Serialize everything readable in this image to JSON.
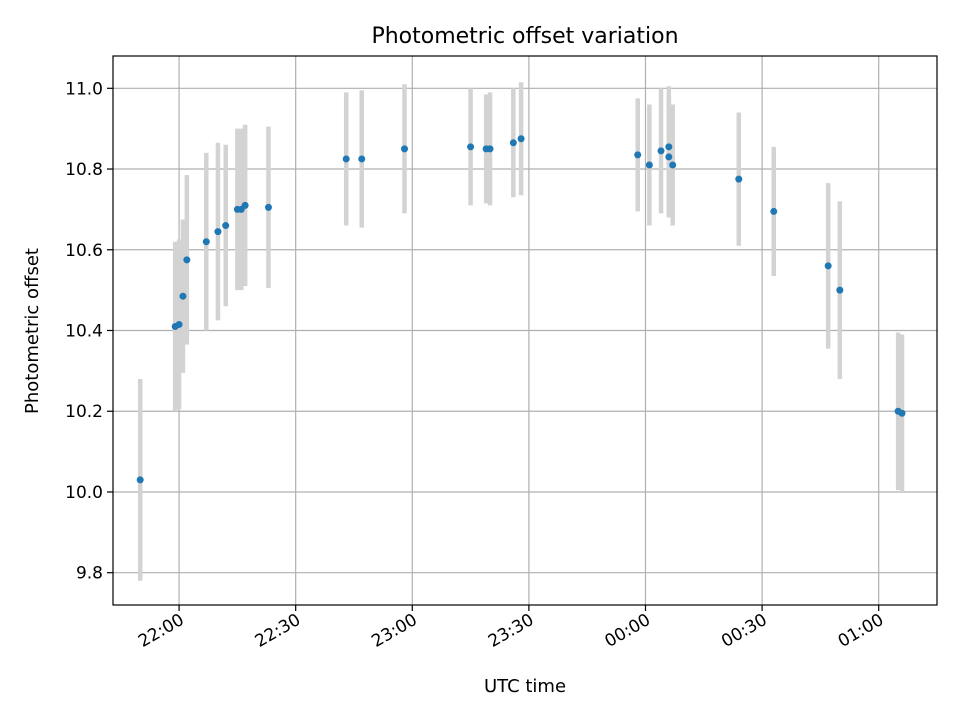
{
  "chart_data": {
    "type": "scatter",
    "title": "Photometric offset variation",
    "xlabel": "UTC time",
    "ylabel": "Photometric offset",
    "x_unit": "UTC time, clock labels; points span 21:50 to 01:07 across midnight",
    "x_ticks": [
      "22:00",
      "22:30",
      "23:00",
      "23:30",
      "00:00",
      "00:30",
      "01:00"
    ],
    "y_ticks": [
      "9.8",
      "10.0",
      "10.2",
      "10.4",
      "10.6",
      "10.8",
      "11.0"
    ],
    "xlim": [
      "21:43",
      "01:15"
    ],
    "ylim": [
      9.72,
      11.08
    ],
    "grid": true,
    "legend": "none",
    "colors": {
      "points": "#1f77b4",
      "errorbars": "#d3d3d3",
      "grid": "#b0b0b0"
    },
    "series": [
      {
        "points": [
          {
            "x": "21:50",
            "y": 10.03,
            "err": 0.25
          },
          {
            "x": "21:59",
            "y": 10.41,
            "err": 0.21
          },
          {
            "x": "22:00",
            "y": 10.415,
            "err": 0.21
          },
          {
            "x": "22:01",
            "y": 10.485,
            "err": 0.19
          },
          {
            "x": "22:02",
            "y": 10.575,
            "err": 0.21
          },
          {
            "x": "22:07",
            "y": 10.62,
            "err": 0.22
          },
          {
            "x": "22:10",
            "y": 10.645,
            "err": 0.22
          },
          {
            "x": "22:12",
            "y": 10.66,
            "err": 0.2
          },
          {
            "x": "22:15",
            "y": 10.7,
            "err": 0.2
          },
          {
            "x": "22:16",
            "y": 10.7,
            "err": 0.2
          },
          {
            "x": "22:17",
            "y": 10.71,
            "err": 0.2
          },
          {
            "x": "22:23",
            "y": 10.705,
            "err": 0.2
          },
          {
            "x": "22:43",
            "y": 10.825,
            "err": 0.165
          },
          {
            "x": "22:47",
            "y": 10.825,
            "err": 0.17
          },
          {
            "x": "22:58",
            "y": 10.85,
            "err": 0.16
          },
          {
            "x": "23:15",
            "y": 10.855,
            "err": 0.145
          },
          {
            "x": "23:19",
            "y": 10.85,
            "err": 0.135
          },
          {
            "x": "23:20",
            "y": 10.85,
            "err": 0.14
          },
          {
            "x": "23:26",
            "y": 10.865,
            "err": 0.135
          },
          {
            "x": "23:28",
            "y": 10.875,
            "err": 0.14
          },
          {
            "x": "23:58",
            "y": 10.835,
            "err": 0.14
          },
          {
            "x": "00:01",
            "y": 10.81,
            "err": 0.15
          },
          {
            "x": "00:04",
            "y": 10.845,
            "err": 0.155
          },
          {
            "x": "00:06",
            "y": 10.855,
            "err": 0.15
          },
          {
            "x": "00:06",
            "y": 10.83,
            "err": 0.15
          },
          {
            "x": "00:07",
            "y": 10.81,
            "err": 0.15
          },
          {
            "x": "00:24",
            "y": 10.775,
            "err": 0.165
          },
          {
            "x": "00:33",
            "y": 10.695,
            "err": 0.16
          },
          {
            "x": "00:47",
            "y": 10.56,
            "err": 0.205
          },
          {
            "x": "00:50",
            "y": 10.5,
            "err": 0.22
          },
          {
            "x": "01:05",
            "y": 10.2,
            "err": 0.195
          },
          {
            "x": "01:06",
            "y": 10.195,
            "err": 0.195
          }
        ]
      }
    ]
  }
}
